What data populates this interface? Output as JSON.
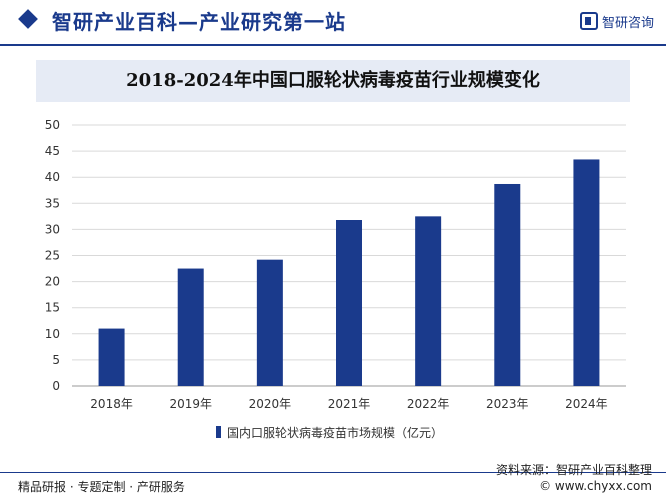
{
  "header": {
    "site_title": "智研产业百科—产业研究第一站",
    "logo_text": "智研咨询",
    "accent_color": "#1a3a8c"
  },
  "chart_data": {
    "type": "bar",
    "title": "2018-2024年中国口服轮状病毒疫苗行业规模变化",
    "categories": [
      "2018年",
      "2019年",
      "2020年",
      "2021年",
      "2022年",
      "2023年",
      "2024年"
    ],
    "series": [
      {
        "name": "国内口服轮状病毒疫苗市场规模（亿元）",
        "values": [
          11,
          22.5,
          24.2,
          31.8,
          32.5,
          38.7,
          43.4
        ],
        "color": "#1a3a8c"
      }
    ],
    "yticks": [
      0,
      5,
      10,
      15,
      20,
      25,
      30,
      35,
      40,
      45,
      50
    ],
    "ylim": [
      0,
      50
    ],
    "grid": true,
    "legend_position": "bottom"
  },
  "footer": {
    "left_text": "精品研报 · 专题定制 · 产研服务",
    "source_text": "资料来源：智研产业百科整理",
    "url_text": "© www.chyxx.com"
  }
}
